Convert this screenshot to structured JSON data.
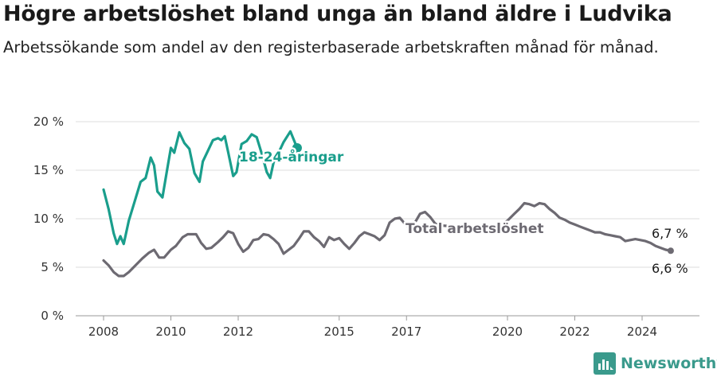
{
  "title": "Högre arbetslöshet bland unga än bland äldre i Ludvika",
  "subtitle": "Arbetssökande som andel av den registerbaserade arbetskraften månad för månad.",
  "brand": {
    "name": "Newsworthy",
    "color": "#3a9a8c"
  },
  "chart_data": {
    "type": "line",
    "ylim": [
      0,
      20
    ],
    "xlim": [
      2007.5,
      2025.2
    ],
    "y_ticks": [
      0,
      5,
      10,
      15,
      20
    ],
    "y_tick_labels": [
      "0 %",
      "5 %",
      "10 %",
      "15 %",
      "20 %"
    ],
    "x_ticks": [
      2008,
      2010,
      2012,
      2015,
      2017,
      2020,
      2022,
      2024
    ],
    "x_tick_labels": [
      "2008",
      "2010",
      "2012",
      "2015",
      "2017",
      "2020",
      "2022",
      "2024"
    ],
    "grid": true,
    "series": [
      {
        "name": "18-24-åringar",
        "color": "#1a9e8c",
        "end_label": "6,6 %",
        "points": [
          [
            2008.0,
            13.0
          ],
          [
            2008.15,
            11.0
          ],
          [
            2008.3,
            8.5
          ],
          [
            2008.4,
            7.4
          ],
          [
            2008.5,
            8.2
          ],
          [
            2008.6,
            7.4
          ],
          [
            2008.75,
            9.8
          ],
          [
            2008.9,
            11.5
          ],
          [
            2009.1,
            13.8
          ],
          [
            2009.25,
            14.2
          ],
          [
            2009.4,
            16.3
          ],
          [
            2009.5,
            15.5
          ],
          [
            2009.6,
            12.8
          ],
          [
            2009.75,
            12.2
          ],
          [
            2009.9,
            15.3
          ],
          [
            2010.0,
            17.3
          ],
          [
            2010.1,
            16.8
          ],
          [
            2010.25,
            18.9
          ],
          [
            2010.4,
            17.8
          ],
          [
            2010.55,
            17.2
          ],
          [
            2010.7,
            14.7
          ],
          [
            2010.85,
            13.8
          ],
          [
            2010.95,
            15.9
          ],
          [
            2011.1,
            17.0
          ],
          [
            2011.25,
            18.1
          ],
          [
            2011.4,
            18.3
          ],
          [
            2011.5,
            18.1
          ],
          [
            2011.6,
            18.5
          ],
          [
            2011.7,
            16.9
          ],
          [
            2011.85,
            14.4
          ],
          [
            2011.95,
            14.8
          ],
          [
            2012.1,
            17.7
          ],
          [
            2012.25,
            18.0
          ],
          [
            2012.4,
            18.7
          ],
          [
            2012.55,
            18.4
          ],
          [
            2012.7,
            16.7
          ],
          [
            2012.85,
            14.8
          ],
          [
            2012.95,
            14.2
          ],
          [
            2013.05,
            15.8
          ],
          [
            2013.2,
            16.8
          ],
          [
            2013.35,
            17.9
          ],
          [
            2013.55,
            19.0
          ],
          [
            2013.75,
            17.3
          ]
        ]
      },
      {
        "name": "Total arbetslöshet",
        "color": "#6d6a72",
        "end_label": "6,7 %",
        "points": [
          [
            2008.0,
            5.7
          ],
          [
            2008.15,
            5.2
          ],
          [
            2008.3,
            4.5
          ],
          [
            2008.45,
            4.1
          ],
          [
            2008.6,
            4.1
          ],
          [
            2008.75,
            4.5
          ],
          [
            2008.95,
            5.2
          ],
          [
            2009.15,
            5.9
          ],
          [
            2009.35,
            6.5
          ],
          [
            2009.5,
            6.8
          ],
          [
            2009.65,
            6.0
          ],
          [
            2009.8,
            6.0
          ],
          [
            2010.0,
            6.8
          ],
          [
            2010.15,
            7.2
          ],
          [
            2010.35,
            8.1
          ],
          [
            2010.5,
            8.4
          ],
          [
            2010.75,
            8.4
          ],
          [
            2010.9,
            7.5
          ],
          [
            2011.05,
            6.9
          ],
          [
            2011.2,
            7.0
          ],
          [
            2011.4,
            7.6
          ],
          [
            2011.55,
            8.1
          ],
          [
            2011.7,
            8.7
          ],
          [
            2011.85,
            8.5
          ],
          [
            2012.0,
            7.4
          ],
          [
            2012.15,
            6.6
          ],
          [
            2012.3,
            7.0
          ],
          [
            2012.45,
            7.8
          ],
          [
            2012.6,
            7.9
          ],
          [
            2012.75,
            8.4
          ],
          [
            2012.9,
            8.3
          ],
          [
            2013.05,
            7.9
          ],
          [
            2013.2,
            7.4
          ],
          [
            2013.35,
            6.4
          ],
          [
            2013.5,
            6.8
          ],
          [
            2013.65,
            7.2
          ],
          [
            2013.8,
            7.9
          ],
          [
            2013.95,
            8.7
          ],
          [
            2014.1,
            8.7
          ],
          [
            2014.25,
            8.1
          ],
          [
            2014.4,
            7.7
          ],
          [
            2014.55,
            7.1
          ],
          [
            2014.7,
            8.1
          ],
          [
            2014.85,
            7.8
          ],
          [
            2015.0,
            8.0
          ],
          [
            2015.15,
            7.4
          ],
          [
            2015.3,
            6.9
          ],
          [
            2015.45,
            7.5
          ],
          [
            2015.6,
            8.2
          ],
          [
            2015.75,
            8.6
          ],
          [
            2015.9,
            8.4
          ],
          [
            2016.05,
            8.2
          ],
          [
            2016.2,
            7.8
          ],
          [
            2016.35,
            8.3
          ],
          [
            2016.5,
            9.6
          ],
          [
            2016.65,
            10.0
          ],
          [
            2016.8,
            10.1
          ],
          [
            2016.95,
            9.5
          ],
          [
            2017.1,
            9.0
          ],
          [
            2017.25,
            9.6
          ],
          [
            2017.4,
            10.5
          ],
          [
            2017.55,
            10.7
          ],
          [
            2017.7,
            10.2
          ],
          [
            2017.85,
            9.5
          ],
          [
            2018.0,
            9.3
          ],
          [
            2018.5,
            9.2
          ],
          [
            2019.0,
            9.0
          ],
          [
            2019.5,
            8.8
          ],
          [
            2019.75,
            9.2
          ],
          [
            2020.0,
            9.8
          ],
          [
            2020.2,
            10.5
          ],
          [
            2020.35,
            11.0
          ],
          [
            2020.5,
            11.6
          ],
          [
            2020.65,
            11.5
          ],
          [
            2020.8,
            11.3
          ],
          [
            2020.95,
            11.6
          ],
          [
            2021.1,
            11.5
          ],
          [
            2021.25,
            11.0
          ],
          [
            2021.4,
            10.6
          ],
          [
            2021.55,
            10.1
          ],
          [
            2021.7,
            9.9
          ],
          [
            2021.85,
            9.6
          ],
          [
            2022.0,
            9.4
          ],
          [
            2022.15,
            9.2
          ],
          [
            2022.3,
            9.0
          ],
          [
            2022.45,
            8.8
          ],
          [
            2022.6,
            8.6
          ],
          [
            2022.75,
            8.6
          ],
          [
            2022.9,
            8.4
          ],
          [
            2023.05,
            8.3
          ],
          [
            2023.2,
            8.2
          ],
          [
            2023.35,
            8.1
          ],
          [
            2023.5,
            7.7
          ],
          [
            2023.65,
            7.8
          ],
          [
            2023.8,
            7.9
          ],
          [
            2023.95,
            7.8
          ],
          [
            2024.1,
            7.7
          ],
          [
            2024.25,
            7.5
          ],
          [
            2024.4,
            7.2
          ],
          [
            2024.55,
            7.0
          ],
          [
            2024.7,
            6.8
          ],
          [
            2024.85,
            6.7
          ]
        ]
      }
    ]
  }
}
